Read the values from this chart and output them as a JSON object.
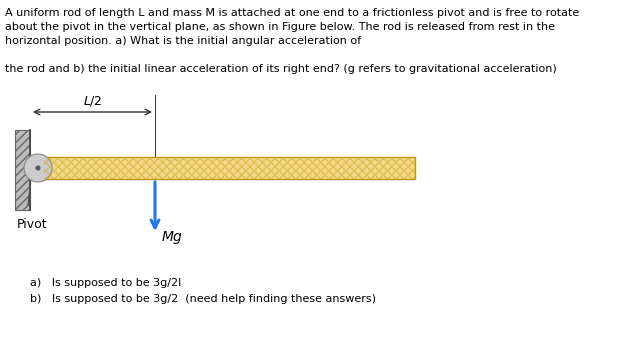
{
  "bg_color": "#ffffff",
  "text_lines": [
    "A uniform rod of length L and mass M is attached at one end to a frictionless pivot and is free to rotate",
    "about the pivot in the vertical plane, as shown in Figure below. The rod is released from rest in the",
    "horizontal position. a) What is the initial angular acceleration of",
    "",
    "the rod and b) the initial linear acceleration of its right end? (g refers to gravitational acceleration)"
  ],
  "answer_a": "a)   Is supposed to be 3g/2l",
  "answer_b": "b)   Is supposed to be 3g/2  (need help finding these answers)",
  "rod_fill_color": "#f5d98a",
  "rod_edge_color": "#b8960a",
  "hatch_color": "#c8a820",
  "force_color": "#2277ee",
  "text_color": "#000000",
  "font_size_main": 8.0,
  "font_size_diagram": 9.0,
  "pivot_circle_color": "#cccccc",
  "pivot_dot_color": "#555555",
  "wall_color": "#bbbbbb",
  "wall_hatch_color": "#888888"
}
